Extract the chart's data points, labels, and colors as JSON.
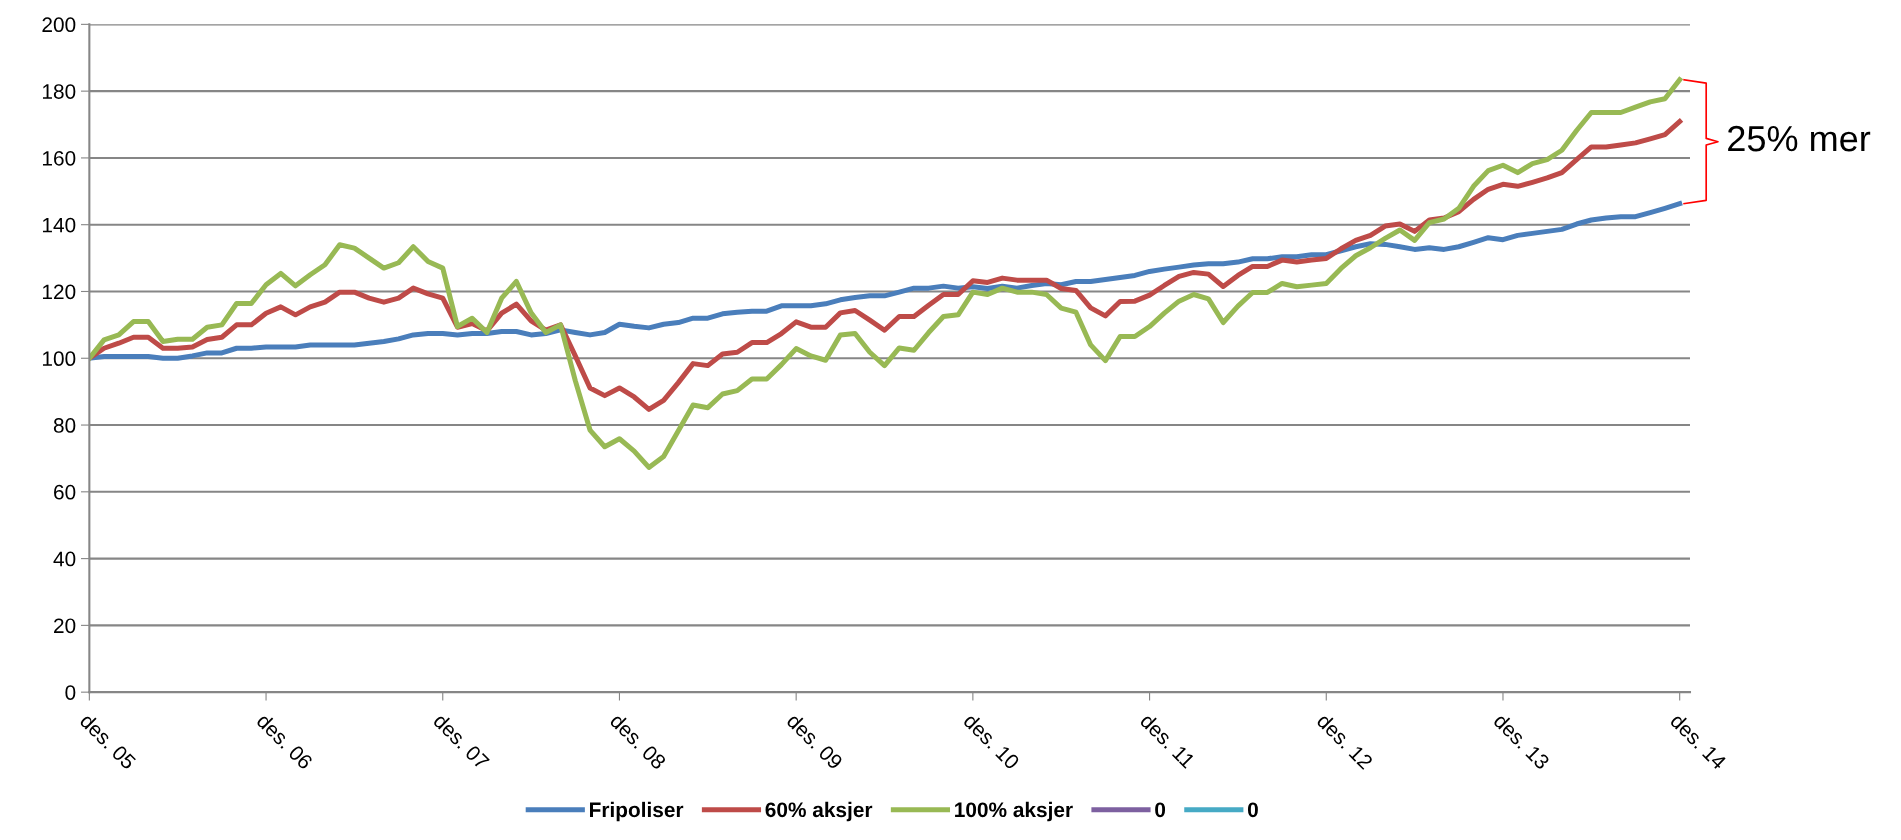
{
  "chart_data": {
    "type": "line",
    "categories": [
      "des. 05",
      null,
      null,
      null,
      null,
      null,
      null,
      null,
      null,
      null,
      null,
      null,
      "des. 06",
      null,
      null,
      null,
      null,
      null,
      null,
      null,
      null,
      null,
      null,
      null,
      "des. 07",
      null,
      null,
      null,
      null,
      null,
      null,
      null,
      null,
      null,
      null,
      null,
      "des. 08",
      null,
      null,
      null,
      null,
      null,
      null,
      null,
      null,
      null,
      null,
      null,
      "des. 09",
      null,
      null,
      null,
      null,
      null,
      null,
      null,
      null,
      null,
      null,
      null,
      "des. 10",
      null,
      null,
      null,
      null,
      null,
      null,
      null,
      null,
      null,
      null,
      null,
      "des. 11",
      null,
      null,
      null,
      null,
      null,
      null,
      null,
      null,
      null,
      null,
      null,
      "des. 12",
      null,
      null,
      null,
      null,
      null,
      null,
      null,
      null,
      null,
      null,
      null,
      "des. 13",
      null,
      null,
      null,
      null,
      null,
      null,
      null,
      null,
      null,
      null,
      null,
      "des. 14"
    ],
    "series": [
      {
        "name": "Fripoliser",
        "color": "#4a7ebb",
        "values": [
          100,
          100.5,
          100.5,
          100.5,
          100.5,
          100,
          100,
          100.7,
          101.6,
          101.6,
          103,
          103,
          103.4,
          103.4,
          103.4,
          104,
          104,
          104,
          104,
          104.5,
          105,
          105.8,
          107,
          107.4,
          107.4,
          107,
          107.4,
          107.4,
          108,
          108,
          107,
          107.4,
          108.5,
          107.7,
          107,
          107.7,
          110.2,
          109.6,
          109.1,
          110.2,
          110.7,
          112,
          112,
          113.3,
          113.8,
          114.1,
          114.1,
          115.7,
          115.7,
          115.7,
          116.3,
          117.5,
          118.2,
          118.7,
          118.7,
          119.8,
          121,
          121,
          121.6,
          121,
          121.4,
          120.9,
          121.6,
          121,
          121.8,
          122.4,
          122,
          123,
          123,
          123.6,
          124.2,
          124.8,
          126,
          126.7,
          127.3,
          127.9,
          128.3,
          128.3,
          128.8,
          129.8,
          129.8,
          130.4,
          130.4,
          131,
          131,
          132.2,
          133.4,
          134.3,
          134.1,
          133.4,
          132.6,
          133.1,
          132.6,
          133.4,
          134.7,
          136.1,
          135.5,
          136.8,
          137.4,
          138,
          138.6,
          140.2,
          141.4,
          142,
          142.4,
          142.4,
          143.6,
          144.9,
          146.3
        ]
      },
      {
        "name": "60% aksjer",
        "color": "#be4b48",
        "values": [
          100,
          103,
          104.5,
          106.3,
          106.3,
          103,
          103,
          103.4,
          105.6,
          106.3,
          110,
          110,
          113.5,
          115.4,
          113,
          115.4,
          116.8,
          119.8,
          119.8,
          118,
          116.8,
          118,
          121,
          119.3,
          118,
          109.3,
          110.4,
          108.2,
          113.5,
          116.2,
          111.2,
          108.4,
          110,
          100.7,
          91.1,
          88.8,
          91.1,
          88.4,
          84.7,
          87.4,
          92.7,
          98.4,
          97.8,
          101.3,
          101.8,
          104.7,
          104.7,
          107.4,
          110.9,
          109.3,
          109.3,
          113.6,
          114.3,
          111.4,
          108.4,
          112.5,
          112.5,
          115.9,
          119.1,
          119.1,
          123.2,
          122.7,
          124,
          123.4,
          123.4,
          123.4,
          120.9,
          120.3,
          115.1,
          112.7,
          117,
          117.1,
          118.9,
          121.8,
          124.5,
          125.7,
          125.2,
          121.5,
          124.8,
          127.5,
          127.5,
          129.4,
          128.8,
          129.4,
          129.9,
          132.8,
          135.3,
          136.8,
          139.6,
          140.2,
          138,
          141.4,
          142,
          143.9,
          147.6,
          150.6,
          152.1,
          151.5,
          152.7,
          154,
          155.6,
          159.5,
          163.3,
          163.3,
          163.9,
          164.5,
          165.7,
          167,
          170.9
        ]
      },
      {
        "name": "100% aksjer",
        "color": "#98b954",
        "values": [
          100,
          105.5,
          107,
          111,
          111,
          105,
          105.7,
          105.7,
          109.3,
          110,
          116.4,
          116.4,
          122,
          125.4,
          121.7,
          125,
          128,
          134,
          133,
          130,
          127,
          128.6,
          133.4,
          129,
          127,
          109.5,
          112,
          107.7,
          118,
          123,
          113.6,
          107.7,
          110,
          93.3,
          78.5,
          73.5,
          75.9,
          72.2,
          67.3,
          70.6,
          78.3,
          86,
          85.2,
          89.3,
          90.3,
          93.8,
          93.8,
          98.1,
          102.9,
          100.7,
          99.4,
          107,
          107.4,
          101.8,
          97.8,
          103.1,
          102.4,
          107.7,
          112.5,
          113,
          119.8,
          119.1,
          121,
          119.8,
          119.8,
          119.1,
          115,
          113.8,
          104,
          99.3,
          106.5,
          106.5,
          109.5,
          113.5,
          117.1,
          119.1,
          117.8,
          110.7,
          115.6,
          119.7,
          119.7,
          122.4,
          121.4,
          121.9,
          122.4,
          126.9,
          130.7,
          133.1,
          135.9,
          138.4,
          135.3,
          140.6,
          141.7,
          144.9,
          151.5,
          156.2,
          157.8,
          155.6,
          158.3,
          159.5,
          162.3,
          168.2,
          173.6,
          173.6,
          173.6,
          175.2,
          176.8,
          177.7,
          183.4
        ]
      },
      {
        "name": "0",
        "color": "#7d60a0",
        "values": [
          null,
          null,
          null,
          null,
          null,
          null,
          null,
          null,
          null,
          null,
          null,
          null,
          null,
          null,
          null,
          null,
          null,
          null,
          null,
          null,
          null,
          null,
          null,
          null,
          null,
          null,
          null,
          null,
          null,
          null,
          null,
          null,
          null,
          null,
          null,
          null,
          null,
          null,
          null,
          null,
          null,
          null,
          null,
          null,
          null,
          null,
          null,
          null,
          null,
          null,
          null,
          null,
          null,
          null,
          null,
          null,
          null,
          null,
          null,
          null,
          null,
          null,
          null,
          null,
          null,
          null,
          null,
          null,
          null,
          null,
          null,
          null,
          null,
          null,
          null,
          null,
          null,
          null,
          null,
          null,
          null,
          null,
          null,
          null,
          null,
          null,
          null,
          null,
          null,
          null,
          null,
          null,
          null,
          null,
          null,
          null,
          null,
          null,
          null,
          null,
          null,
          null,
          null,
          null,
          null,
          null,
          null,
          null,
          null
        ]
      },
      {
        "name": "0",
        "color": "#46aac5",
        "values": [
          null,
          null,
          null,
          null,
          null,
          null,
          null,
          null,
          null,
          null,
          null,
          null,
          null,
          null,
          null,
          null,
          null,
          null,
          null,
          null,
          null,
          null,
          null,
          null,
          null,
          null,
          null,
          null,
          null,
          null,
          null,
          null,
          null,
          null,
          null,
          null,
          null,
          null,
          null,
          null,
          null,
          null,
          null,
          null,
          null,
          null,
          null,
          null,
          null,
          null,
          null,
          null,
          null,
          null,
          null,
          null,
          null,
          null,
          null,
          null,
          null,
          null,
          null,
          null,
          null,
          null,
          null,
          null,
          null,
          null,
          null,
          null,
          null,
          null,
          null,
          null,
          null,
          null,
          null,
          null,
          null,
          null,
          null,
          null,
          null,
          null,
          null,
          null,
          null,
          null,
          null,
          null,
          null,
          null,
          null,
          null,
          null,
          null,
          null,
          null,
          null,
          null,
          null,
          null,
          null,
          null,
          null,
          null,
          null
        ]
      }
    ],
    "ylim": [
      0,
      200
    ],
    "yticks": [
      0,
      20,
      40,
      60,
      80,
      100,
      120,
      140,
      160,
      180,
      200
    ],
    "grid": "y",
    "legend": "bottom",
    "marker": "none",
    "line_style": "solid",
    "annotations": [
      "25% mer"
    ]
  }
}
